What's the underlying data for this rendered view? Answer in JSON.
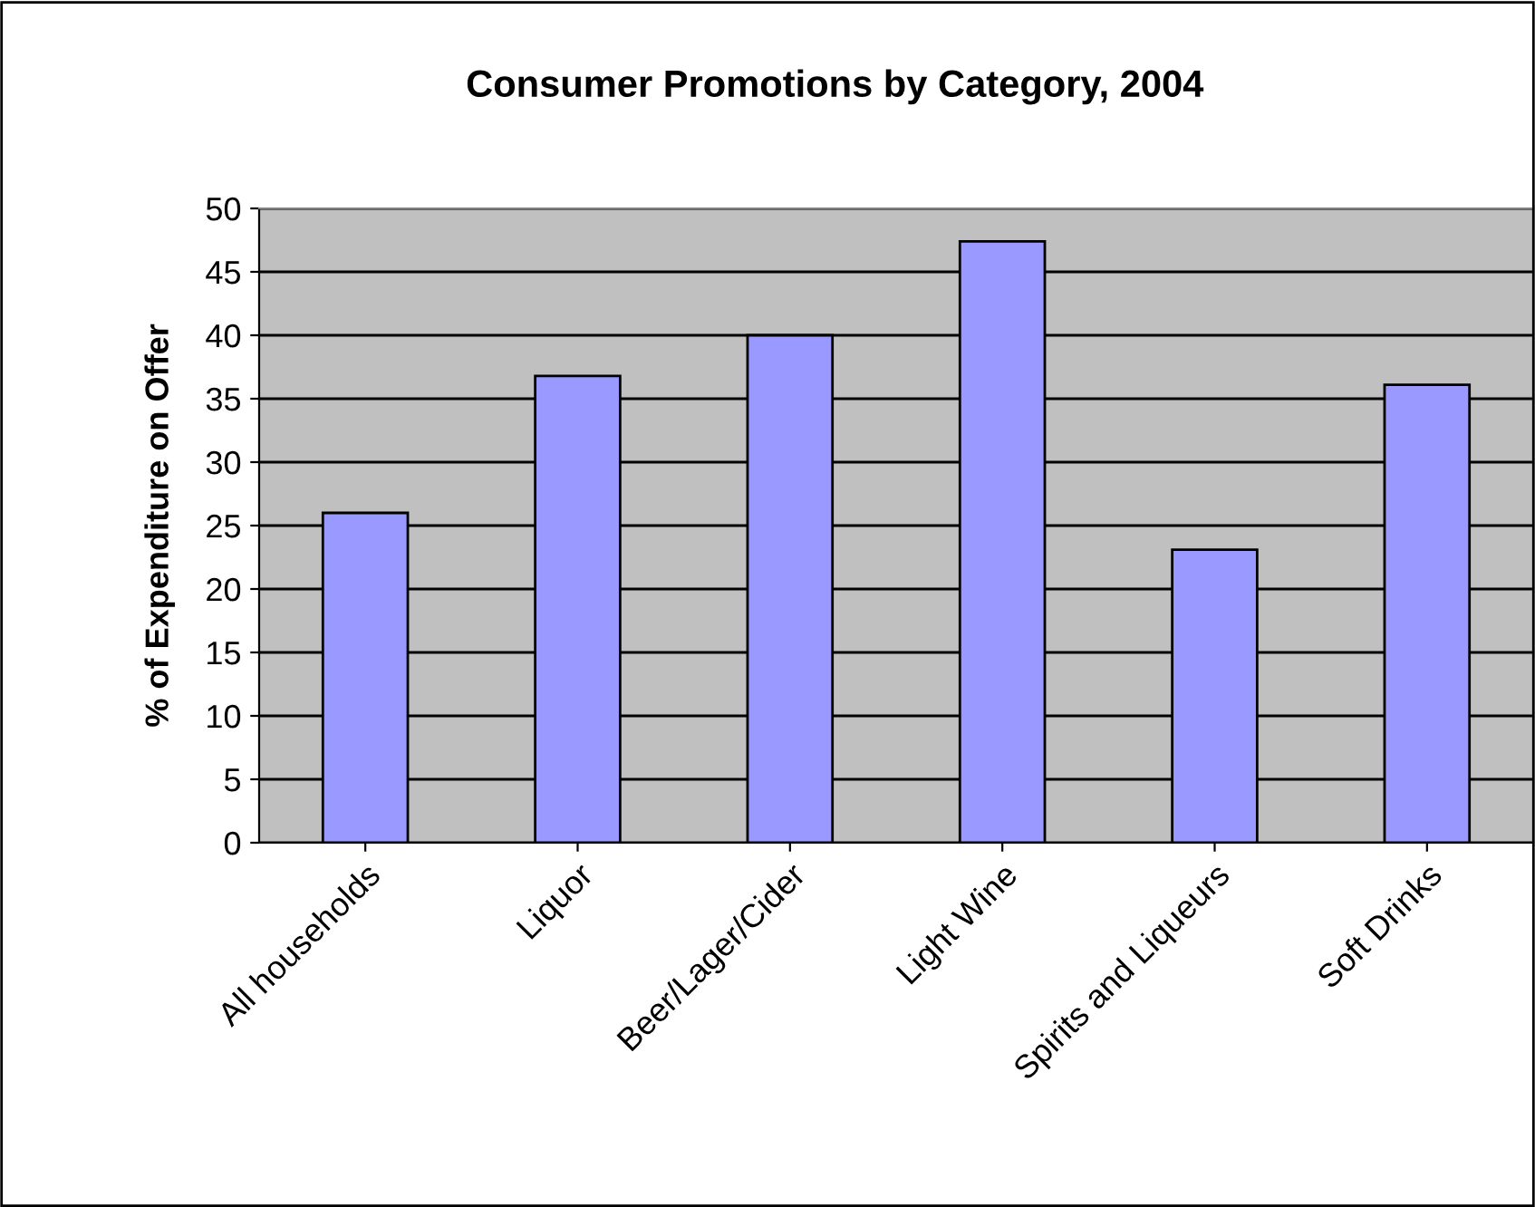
{
  "chart_data": {
    "type": "bar",
    "title": "Consumer Promotions by Category, 2004",
    "ylabel": "% of Expenditure on Offer",
    "categories": [
      "All households",
      "Liquor",
      "Beer/Lager/Cider",
      "Light Wine",
      "Spirits and Liqueurs",
      "Soft Drinks"
    ],
    "values": [
      26.0,
      36.8,
      40.0,
      47.4,
      23.1,
      36.1
    ],
    "color": "#9999ff",
    "ylim": [
      0,
      50
    ],
    "yticks": [
      0,
      5,
      10,
      15,
      20,
      25,
      30,
      35,
      40,
      45,
      50
    ],
    "grid": "y"
  }
}
